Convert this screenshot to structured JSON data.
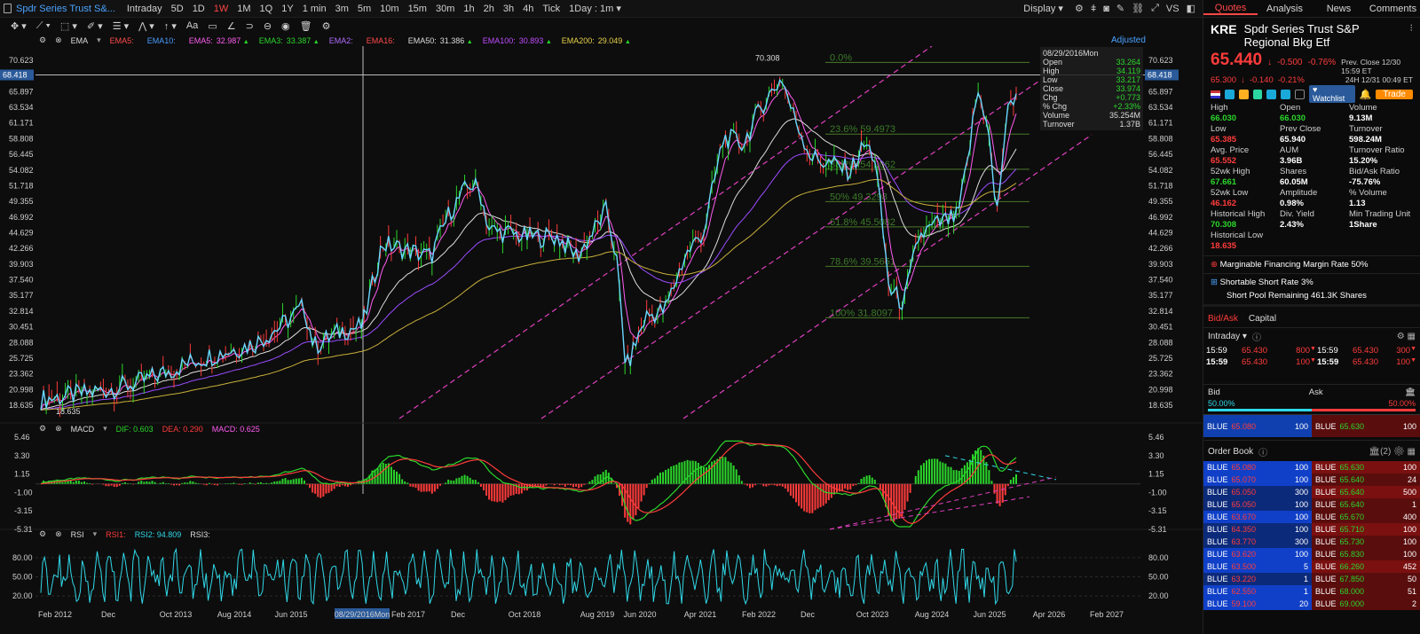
{
  "topbar": {
    "title": "Spdr Series Trust S&...",
    "timeframes": [
      "Intraday",
      "5D",
      "1D",
      "1W",
      "1M",
      "1Q",
      "1Y",
      "1 min",
      "3m",
      "5m",
      "10m",
      "15m",
      "30m",
      "1h",
      "2h",
      "3h",
      "4h",
      "Tick"
    ],
    "active_timeframe": "1W",
    "interval": "1Day : 1m",
    "display": "Display",
    "vs": "VS"
  },
  "toolbar": {
    "text_tool": "Aa",
    "adjusted": "Adjusted"
  },
  "ema_legend": {
    "label": "EMA",
    "items": [
      {
        "name": "EMA5:",
        "value": "",
        "color": "#ff4a4a"
      },
      {
        "name": "EMA10:",
        "value": "",
        "color": "#4a9cff"
      },
      {
        "name": "EMA5:",
        "value": "32.987",
        "color": "#ff5cf0"
      },
      {
        "name": "EMA3:",
        "value": "33.387",
        "color": "#2bd62b"
      },
      {
        "name": "EMA2:",
        "value": "",
        "color": "#b06cff"
      },
      {
        "name": "EMA16:",
        "value": "",
        "color": "#ff4a4a"
      },
      {
        "name": "EMA50:",
        "value": "31.386",
        "color": "#dddddd"
      },
      {
        "name": "EMA100:",
        "value": "30.893",
        "color": "#c14cff"
      },
      {
        "name": "EMA200:",
        "value": "29.049",
        "color": "#e8d34a"
      }
    ]
  },
  "price_axis": [
    "70.623",
    "68.418",
    "65.897",
    "63.534",
    "61.171",
    "58.808",
    "56.445",
    "54.082",
    "51.718",
    "49.355",
    "46.992",
    "44.629",
    "42.266",
    "39.903",
    "37.540",
    "35.177",
    "32.814",
    "30.451",
    "28.088",
    "25.725",
    "23.362",
    "20.998",
    "18.635"
  ],
  "price_marker": "68.418",
  "annotations": {
    "high": "70.308",
    "low": "18.635"
  },
  "fib_levels": [
    {
      "label": "0.0%",
      "price": "70.308"
    },
    {
      "label": "23.6% 59.4973",
      "price": "59.4973"
    },
    {
      "label": "38.2% 54.2062",
      "price": "54.2062"
    },
    {
      "label": "50% 49.3298",
      "price": "49.3298"
    },
    {
      "label": "61.8% 45.5082",
      "price": "45.5082"
    },
    {
      "label": "78.6% 39.5651",
      "price": "39.5651"
    },
    {
      "label": "100% 31.8097",
      "price": "31.8097"
    }
  ],
  "tooltip": {
    "date": "08/29/2016Mon",
    "rows": [
      {
        "k": "Open",
        "v": "33.264",
        "c": "#2bd62b"
      },
      {
        "k": "High",
        "v": "34.119",
        "c": "#2bd62b"
      },
      {
        "k": "Low",
        "v": "33.217",
        "c": "#2bd62b"
      },
      {
        "k": "Close",
        "v": "33.974",
        "c": "#2bd62b"
      },
      {
        "k": "Chg",
        "v": "+0.773",
        "c": "#2bd62b"
      },
      {
        "k": "% Chg",
        "v": "+2.33%",
        "c": "#2bd62b"
      },
      {
        "k": "Volume",
        "v": "35.254M",
        "c": "#dddddd"
      },
      {
        "k": "Turnover",
        "v": "1.37B",
        "c": "#dddddd"
      }
    ]
  },
  "macd_legend": {
    "label": "MACD",
    "dif": "DIF: 0.603",
    "dea": "DEA: 0.290",
    "macd": "MACD: 0.625"
  },
  "macd_axis": [
    "5.46",
    "3.30",
    "1.15",
    "-1.00",
    "-3.15",
    "-5.31"
  ],
  "rsi_legend": {
    "label": "RSI",
    "rsi1": "RSI1:",
    "rsi2": "RSI2: 94.809",
    "rsi3": "RSI3:"
  },
  "rsi_axis": [
    "80.00",
    "50.00",
    "20.00"
  ],
  "x_axis": [
    "Feb 2012",
    "Dec",
    "Oct 2013",
    "Aug 2014",
    "Jun 2015",
    "08/29/2016Mon",
    "Feb 2017",
    "Dec",
    "Oct 2018",
    "Aug 2019",
    "Jun 2020",
    "Apr 2021",
    "Feb 2022",
    "Dec",
    "Oct 2023",
    "Aug 2024",
    "Jun 2025",
    "Apr 2026",
    "Feb 2027"
  ],
  "quote": {
    "tabs": [
      "Quotes",
      "Analysis",
      "News",
      "Comments"
    ],
    "symbol": "KRE",
    "name": "Spdr Series Trust S&P Regional Bkg Etf",
    "price": "65.440",
    "change": "-0.500",
    "change_pct": "-0.76%",
    "prev_close_label": "Prev. Close 12/30 15:59 ET",
    "ah_price": "65.300",
    "ah_change": "-0.140",
    "ah_pct": "-0.21%",
    "ah_label": "24H 12/31 00:49 ET",
    "watchlist": "Watchlist",
    "trade": "Trade",
    "stats": [
      [
        "High",
        "Open",
        "Volume"
      ],
      [
        "66.030",
        "66.030",
        "9.13M"
      ],
      [
        "Low",
        "Prev Close",
        "Turnover"
      ],
      [
        "65.385",
        "65.940",
        "598.24M"
      ],
      [
        "Avg. Price",
        "AUM",
        "Turnover Ratio"
      ],
      [
        "65.552",
        "3.96B",
        "15.20%"
      ],
      [
        "52wk High",
        "Shares",
        "Bid/Ask Ratio"
      ],
      [
        "67.661",
        "60.05M",
        "-75.76%"
      ],
      [
        "52wk Low",
        "Amplitude",
        "% Volume"
      ],
      [
        "46.162",
        "0.98%",
        "1.13"
      ],
      [
        "Historical High",
        "Div. Yield",
        "Min Trading Unit"
      ],
      [
        "70.308",
        "2.43%",
        "1Share"
      ],
      [
        "Historical Low",
        "",
        ""
      ],
      [
        "18.635",
        "",
        ""
      ]
    ],
    "margin": "Marginable Financing Margin Rate 50%",
    "short": "Shortable Short Rate 3%",
    "short_pool": "Short Pool Remaining 461.3K Shares"
  },
  "bidask": {
    "tabs": [
      "Bid/Ask",
      "Capital"
    ],
    "intraday": "Intraday",
    "ticks": [
      {
        "t": "15:59",
        "p": "65.430",
        "q": "800",
        "t2": "15:59",
        "p2": "65.430",
        "q2": "300"
      },
      {
        "t": "15:59",
        "p": "65.430",
        "q": "100",
        "t2": "15:59",
        "p2": "65.430",
        "q2": "100"
      }
    ],
    "bid_label": "Bid",
    "ask_label": "Ask",
    "bid_pct": "50.00%",
    "ask_pct": "50.00%",
    "best_bid": {
      "name": "BLUE",
      "price": "65.080",
      "qty": "100"
    },
    "best_ask": {
      "name": "BLUE",
      "price": "65.630",
      "qty": "100"
    },
    "orderbook_label": "Order Book",
    "orderbook_count": "(2)",
    "rows": [
      {
        "bp": "65.080",
        "bq": "100",
        "ap": "65.630",
        "aq": "100"
      },
      {
        "bp": "65.070",
        "bq": "100",
        "ap": "65.640",
        "aq": "24"
      },
      {
        "bp": "65.050",
        "bq": "300",
        "ap": "65.640",
        "aq": "500"
      },
      {
        "bp": "65.050",
        "bq": "100",
        "ap": "65.640",
        "aq": "1"
      },
      {
        "bp": "63.670",
        "bq": "100",
        "ap": "65.670",
        "aq": "400"
      },
      {
        "bp": "64.350",
        "bq": "100",
        "ap": "65.710",
        "aq": "100"
      },
      {
        "bp": "63.770",
        "bq": "300",
        "ap": "65.730",
        "aq": "100"
      },
      {
        "bp": "63.620",
        "bq": "100",
        "ap": "65.830",
        "aq": "100"
      },
      {
        "bp": "63.500",
        "bq": "5",
        "ap": "66.260",
        "aq": "452"
      },
      {
        "bp": "63.220",
        "bq": "1",
        "ap": "67.850",
        "aq": "50"
      },
      {
        "bp": "62.550",
        "bq": "1",
        "ap": "68.000",
        "aq": "51"
      },
      {
        "bp": "59.100",
        "bq": "20",
        "ap": "69.000",
        "aq": "2"
      }
    ],
    "broker": "BLUE"
  }
}
